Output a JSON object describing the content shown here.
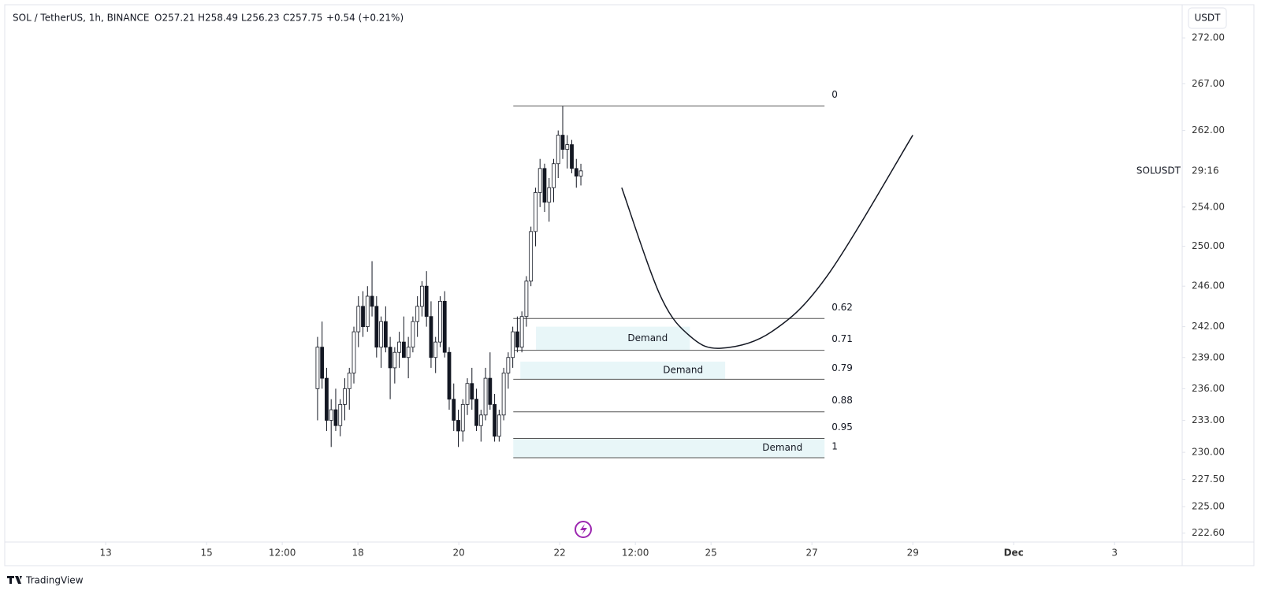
{
  "header": {
    "symbol": "SOL / TetherUS, 1h, BINANCE",
    "open": "O257.21",
    "high": "H258.49",
    "low": "L256.23",
    "close": "C257.75",
    "change": "+0.54 (+0.21%)",
    "currency": "USDT",
    "price_tag": "SOLUSDT",
    "countdown": "29:16"
  },
  "footer": {
    "brand": "TradingView"
  },
  "chart_data": {
    "type": "candlestick",
    "log_scale": true,
    "grid": false,
    "ylim": [
      221.8,
      275.5
    ],
    "yticks": [
      {
        "value": 272,
        "label": "272.00"
      },
      {
        "value": 267,
        "label": "267.00"
      },
      {
        "value": 262,
        "label": "262.00"
      },
      {
        "value": 254,
        "label": "254.00"
      },
      {
        "value": 250,
        "label": "250.00"
      },
      {
        "value": 246,
        "label": "246.00"
      },
      {
        "value": 242,
        "label": "242.00"
      },
      {
        "value": 239,
        "label": "239.00"
      },
      {
        "value": 236,
        "label": "236.00"
      },
      {
        "value": 233,
        "label": "233.00"
      },
      {
        "value": 230,
        "label": "230.00"
      },
      {
        "value": 227.5,
        "label": "227.50"
      },
      {
        "value": 225,
        "label": "225.00"
      },
      {
        "value": 222.6,
        "label": "222.60"
      }
    ],
    "xlim": [
      11.03,
      34.34
    ],
    "xticks": [
      13,
      15,
      {
        "value": 16.5,
        "label": "12:00"
      },
      18,
      20,
      22,
      {
        "value": 23.5,
        "label": "12:00"
      },
      25,
      27,
      29,
      {
        "value": 31,
        "label": "Dec"
      },
      {
        "value": 33,
        "label": "3"
      }
    ],
    "candles": [
      [
        17.2,
        236,
        241,
        233,
        240
      ],
      [
        17.29,
        240,
        242.5,
        236,
        237
      ],
      [
        17.38,
        237,
        238,
        232,
        233
      ],
      [
        17.47,
        233,
        235,
        230.5,
        234
      ],
      [
        17.56,
        234,
        236,
        232,
        232.5
      ],
      [
        17.65,
        232.5,
        235,
        231.5,
        234.5
      ],
      [
        17.74,
        234.5,
        237,
        233,
        236
      ],
      [
        17.83,
        236,
        238,
        234,
        237.5
      ],
      [
        17.92,
        237.5,
        242,
        236.5,
        241.5
      ],
      [
        18.01,
        241.5,
        245,
        240,
        244
      ],
      [
        18.1,
        244,
        245.5,
        241,
        242
      ],
      [
        18.19,
        242,
        246,
        241.5,
        245
      ],
      [
        18.28,
        245,
        248.5,
        243,
        244
      ],
      [
        18.37,
        244,
        245,
        239,
        240
      ],
      [
        18.46,
        240,
        243,
        238,
        242.5
      ],
      [
        18.55,
        242.5,
        244,
        239.5,
        240
      ],
      [
        18.64,
        240,
        241,
        235,
        238
      ],
      [
        18.73,
        238,
        240,
        236.5,
        239.5
      ],
      [
        18.82,
        239.5,
        241.5,
        238,
        240.5
      ],
      [
        18.91,
        240.5,
        243,
        239,
        239
      ],
      [
        19.0,
        239,
        241,
        237,
        240
      ],
      [
        19.09,
        240,
        243,
        239.5,
        242.5
      ],
      [
        19.18,
        242.5,
        245,
        241,
        244
      ],
      [
        19.27,
        244,
        246.5,
        243,
        246
      ],
      [
        19.36,
        246,
        247.5,
        242,
        243
      ],
      [
        19.45,
        243,
        244.5,
        238,
        239
      ],
      [
        19.54,
        239,
        241,
        237.5,
        240.5
      ],
      [
        19.63,
        240.5,
        245,
        240,
        244.5
      ],
      [
        19.72,
        244.5,
        245.5,
        239,
        239.5
      ],
      [
        19.81,
        239.5,
        240,
        234,
        235
      ],
      [
        19.9,
        235,
        236.5,
        232,
        233
      ],
      [
        19.99,
        233,
        234,
        230.5,
        232
      ],
      [
        20.08,
        232,
        235,
        231,
        234.5
      ],
      [
        20.17,
        234.5,
        237,
        233.5,
        236.5
      ],
      [
        20.26,
        236.5,
        238,
        234,
        235
      ],
      [
        20.35,
        235,
        236,
        232,
        232.5
      ],
      [
        20.44,
        232.5,
        234,
        231,
        233.5
      ],
      [
        20.53,
        233.5,
        238,
        233,
        237
      ],
      [
        20.62,
        237,
        239.5,
        234,
        234.5
      ],
      [
        20.71,
        234.5,
        235.5,
        231,
        231.5
      ],
      [
        20.8,
        231.5,
        234,
        231,
        233.5
      ],
      [
        20.89,
        233.5,
        238,
        233,
        237.5
      ],
      [
        20.98,
        237.5,
        239.5,
        236,
        239
      ],
      [
        21.07,
        239,
        242,
        238,
        241.5
      ],
      [
        21.16,
        241.5,
        243,
        239.5,
        240
      ],
      [
        21.25,
        240,
        243.5,
        239.5,
        243
      ],
      [
        21.34,
        243,
        247,
        242,
        246.5
      ],
      [
        21.43,
        246.5,
        252,
        246,
        251.5
      ],
      [
        21.52,
        251.5,
        256,
        250,
        255.5
      ],
      [
        21.61,
        255.5,
        259,
        254,
        258
      ],
      [
        21.7,
        258,
        258.5,
        253.5,
        254.5
      ],
      [
        21.79,
        254.5,
        257,
        252.5,
        256
      ],
      [
        21.88,
        256,
        259,
        254.5,
        258.5
      ],
      [
        21.97,
        258.5,
        262,
        257,
        261.5
      ],
      [
        22.06,
        261.5,
        264.6,
        259,
        260
      ],
      [
        22.15,
        260,
        261.5,
        258,
        260.5
      ],
      [
        22.24,
        260.5,
        261,
        257.5,
        258
      ],
      [
        22.33,
        258,
        259,
        256,
        257.2
      ],
      [
        22.42,
        257.21,
        258.49,
        256.23,
        257.75
      ]
    ],
    "fib": {
      "x": [
        21.08,
        27.25
      ],
      "levels": [
        {
          "label": "0",
          "price": 264.6
        },
        {
          "label": "0.62",
          "price": 242.8
        },
        {
          "label": "0.71",
          "price": 239.7
        },
        {
          "label": "0.79",
          "price": 236.9
        },
        {
          "label": "0.88",
          "price": 233.8
        },
        {
          "label": "0.95",
          "price": 231.3
        },
        {
          "label": "1",
          "price": 229.5
        }
      ]
    },
    "zones": [
      {
        "label": "Demand",
        "x": [
          21.53,
          24.58
        ],
        "y": [
          242,
          239.7
        ]
      },
      {
        "label": "Demand",
        "x": [
          21.22,
          25.28
        ],
        "y": [
          238.6,
          236.9
        ]
      },
      {
        "label": "Demand",
        "x": [
          21.08,
          27.25
        ],
        "y": [
          231.3,
          229.5
        ]
      }
    ],
    "curve": {
      "x": [
        23.23,
        24.0,
        24.6,
        25.2,
        26.2,
        27.3,
        29.0
      ],
      "y": [
        256,
        245,
        241,
        239.9,
        241.5,
        247,
        261.5
      ]
    }
  }
}
